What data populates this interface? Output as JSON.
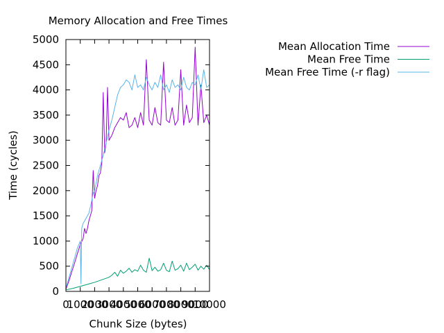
{
  "chart_data": {
    "type": "line",
    "title": "Memory Allocation and Free Times",
    "xlabel": "Chunk Size (bytes)",
    "ylabel": "Time (cycles)",
    "xlim": [
      0,
      10000
    ],
    "ylim": [
      0,
      5000
    ],
    "x_ticks": [
      0,
      1000,
      2000,
      3000,
      4000,
      5000,
      6000,
      7000,
      8000,
      9000,
      10000
    ],
    "y_ticks": [
      0,
      500,
      1000,
      1500,
      2000,
      2500,
      3000,
      3500,
      4000,
      4500,
      5000
    ],
    "grid": false,
    "legend_position": "top-right (outside plot area)",
    "series": [
      {
        "name": "Mean Allocation Time",
        "color": "#9400d3",
        "x": [
          0,
          200,
          400,
          600,
          800,
          1000,
          1200,
          1300,
          1400,
          1500,
          1600,
          1700,
          1800,
          1900,
          2000,
          2100,
          2200,
          2300,
          2400,
          2500,
          2600,
          2700,
          2800,
          2900,
          3000,
          3200,
          3400,
          3600,
          3800,
          4000,
          4200,
          4400,
          4600,
          4800,
          5000,
          5200,
          5400,
          5600,
          5800,
          6000,
          6200,
          6400,
          6600,
          6800,
          7000,
          7200,
          7400,
          7600,
          7800,
          8000,
          8200,
          8400,
          8600,
          8800,
          9000,
          9200,
          9400,
          9600,
          9800,
          10000
        ],
        "values": [
          40,
          200,
          380,
          560,
          750,
          930,
          1050,
          1250,
          1150,
          1250,
          1400,
          1500,
          1600,
          2400,
          1850,
          2000,
          2100,
          2300,
          2350,
          2550,
          3950,
          2750,
          2950,
          4050,
          3000,
          3100,
          3250,
          3350,
          3450,
          3400,
          3550,
          3250,
          3300,
          3450,
          3250,
          3550,
          3300,
          4600,
          3400,
          3300,
          3650,
          3350,
          3300,
          4550,
          3400,
          3350,
          3650,
          3300,
          3400,
          4400,
          3300,
          3700,
          3350,
          3450,
          4850,
          3300,
          4100,
          3350,
          3500,
          3300
        ]
      },
      {
        "name": "Mean Free Time",
        "color": "#009e73",
        "x": [
          0,
          500,
          1000,
          1500,
          2000,
          2500,
          3000,
          3200,
          3400,
          3600,
          3800,
          4000,
          4200,
          4400,
          4600,
          4800,
          5000,
          5200,
          5400,
          5600,
          5800,
          6000,
          6200,
          6400,
          6600,
          6800,
          7000,
          7200,
          7400,
          7600,
          7800,
          8000,
          8200,
          8400,
          8600,
          8800,
          9000,
          9200,
          9400,
          9600,
          9800,
          10000
        ],
        "values": [
          30,
          60,
          100,
          140,
          180,
          230,
          280,
          320,
          380,
          300,
          420,
          360,
          400,
          460,
          380,
          430,
          400,
          520,
          420,
          380,
          660,
          410,
          480,
          400,
          430,
          560,
          420,
          390,
          600,
          420,
          450,
          520,
          400,
          560,
          430,
          480,
          540,
          420,
          500,
          440,
          520,
          430
        ]
      },
      {
        "name": "Mean Free Time (-r flag)",
        "color": "#56b4e9",
        "x": [
          0,
          200,
          400,
          600,
          800,
          1000,
          1050,
          1100,
          1200,
          1400,
          1600,
          1800,
          1900,
          2000,
          2200,
          2400,
          2600,
          2800,
          3000,
          3200,
          3400,
          3600,
          3800,
          4000,
          4200,
          4400,
          4600,
          4800,
          5000,
          5200,
          5400,
          5600,
          5800,
          6000,
          6200,
          6400,
          6600,
          6800,
          7000,
          7200,
          7400,
          7600,
          7800,
          8000,
          8200,
          8400,
          8600,
          8800,
          9000,
          9200,
          9400,
          9600,
          9800,
          10000
        ],
        "values": [
          60,
          260,
          460,
          660,
          860,
          1000,
          150,
          1250,
          1350,
          1450,
          1550,
          1800,
          1950,
          2000,
          2300,
          2500,
          2700,
          2950,
          3200,
          3400,
          3650,
          3900,
          4050,
          4100,
          4200,
          4150,
          4000,
          4300,
          4050,
          4100,
          4000,
          4250,
          4100,
          4000,
          4150,
          4050,
          4300,
          4000,
          4100,
          3950,
          4200,
          4050,
          4100,
          4000,
          4250,
          4050,
          4000,
          4150,
          4100,
          4300,
          4000,
          4400,
          4050,
          4100
        ]
      }
    ]
  }
}
